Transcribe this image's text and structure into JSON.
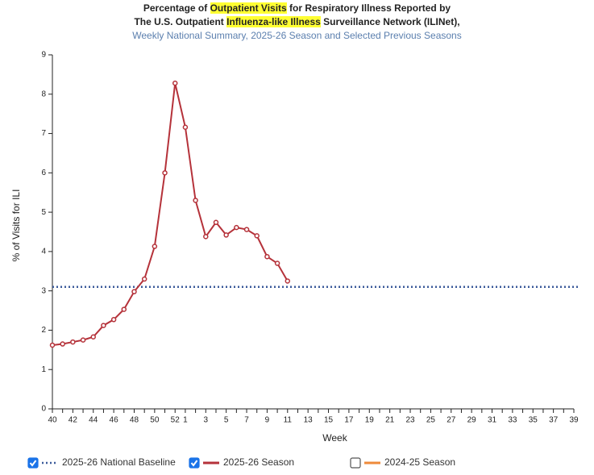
{
  "chart_data": {
    "type": "line",
    "title_lines": [
      [
        {
          "text": "Percentage of ",
          "highlight": false
        },
        {
          "text": "Outpatient Visits",
          "highlight": true
        },
        {
          "text": " for Respiratory Illness Reported by",
          "highlight": false
        }
      ],
      [
        {
          "text": "The U.S. Outpatient ",
          "highlight": false
        },
        {
          "text": "Influenza-like Illness",
          "highlight": true
        },
        {
          "text": " Surveillance Network (ILINet),",
          "highlight": false
        }
      ]
    ],
    "subtitle": "Weekly National Summary, 2025-26 Season and Selected Previous Seasons",
    "x_label": "Week",
    "y_label": "% of Visits for ILI",
    "categories": [
      "40",
      null,
      "42",
      null,
      "44",
      null,
      "46",
      null,
      "48",
      null,
      "50",
      null,
      "52",
      "1",
      null,
      "3",
      null,
      "5",
      null,
      "7",
      null,
      "9",
      null,
      "11",
      null,
      "13",
      null,
      "15",
      null,
      "17",
      null,
      "19",
      null,
      "21",
      null,
      "23",
      null,
      "25",
      null,
      "27",
      null,
      "29",
      null,
      "31",
      null,
      "33",
      null,
      "35",
      null,
      "37",
      null,
      "39"
    ],
    "ylim": [
      0,
      9
    ],
    "yticks": [
      0,
      1,
      2,
      3,
      4,
      5,
      6,
      7,
      8,
      9
    ],
    "series": [
      {
        "name": "2025-26 National Baseline",
        "color": "#3a5a9a",
        "style": "dotted",
        "checked": true,
        "baseline": 3.1
      },
      {
        "name": "2025-26 Season",
        "color": "#b5323a",
        "style": "solid",
        "checked": true,
        "values": [
          1.62,
          1.65,
          1.7,
          1.75,
          1.83,
          2.12,
          2.27,
          2.53,
          2.98,
          3.3,
          4.13,
          6.0,
          8.28,
          7.16,
          5.3,
          4.38,
          4.74,
          4.42,
          4.61,
          4.56,
          4.4,
          3.87,
          3.7,
          3.25,
          null,
          null,
          null,
          null,
          null,
          null,
          null,
          null,
          null,
          null,
          null,
          null,
          null,
          null,
          null,
          null,
          null,
          null,
          null,
          null,
          null,
          null,
          null,
          null,
          null,
          null,
          null,
          null
        ]
      },
      {
        "name": "2024-25 Season",
        "color": "#ee8a3a",
        "style": "solid",
        "checked": false
      }
    ]
  }
}
